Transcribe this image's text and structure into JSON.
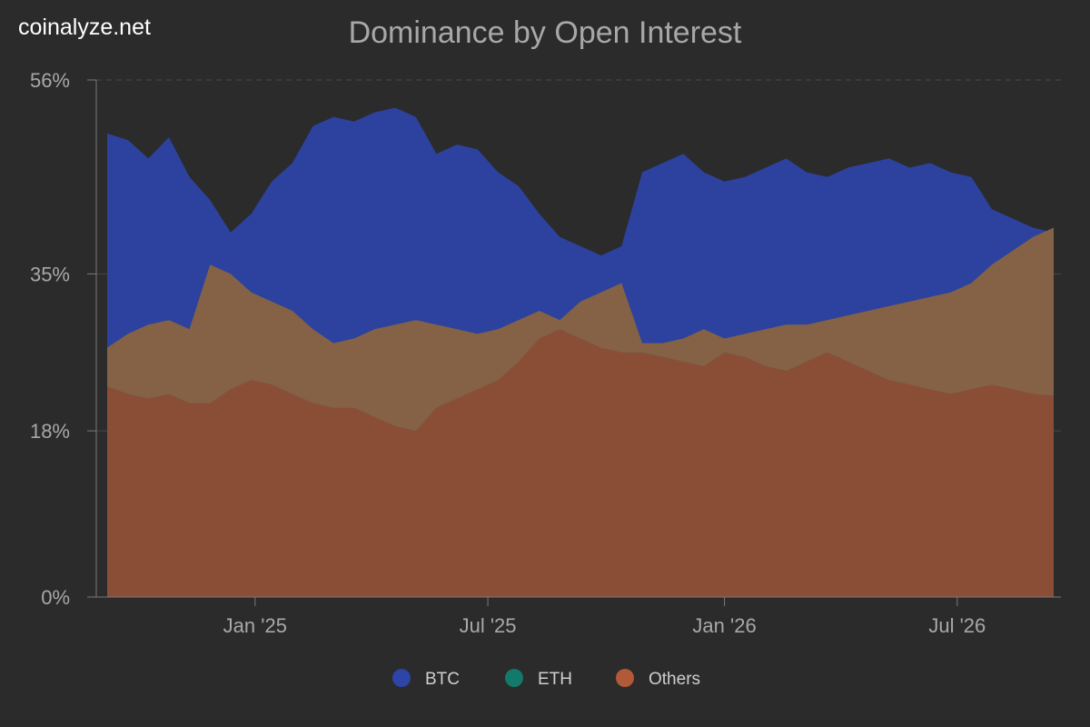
{
  "site_label": "coinalyze.net",
  "chart_data": {
    "type": "area",
    "title": "Dominance by Open Interest",
    "xlabel": "",
    "ylabel": "",
    "ylim": [
      0,
      56
    ],
    "y_ticks": [
      "0%",
      "18%",
      "35%",
      "56%"
    ],
    "y_tick_values": [
      0,
      18,
      35,
      56
    ],
    "x_ticks": [
      "Jan '25",
      "Jul '25",
      "Jan '26",
      "Jul '26"
    ],
    "x_tick_dates": [
      "2025-01-01",
      "2025-07-01",
      "2026-01-01",
      "2026-07-01"
    ],
    "grid": true,
    "legend_position": "bottom-center",
    "x": [
      "2024-09-08",
      "2024-09-24",
      "2024-10-10",
      "2024-10-26",
      "2024-11-11",
      "2024-11-27",
      "2024-12-13",
      "2024-12-29",
      "2025-01-14",
      "2025-01-30",
      "2025-02-15",
      "2025-03-03",
      "2025-03-19",
      "2025-04-04",
      "2025-04-20",
      "2025-05-06",
      "2025-05-22",
      "2025-06-07",
      "2025-06-23",
      "2025-07-09",
      "2025-07-25",
      "2025-08-10",
      "2025-08-26",
      "2025-09-11",
      "2025-09-27",
      "2025-10-13",
      "2025-10-29",
      "2025-11-14",
      "2025-11-30",
      "2025-12-16",
      "2026-01-01",
      "2026-01-17",
      "2026-02-02",
      "2026-02-18",
      "2026-03-06",
      "2026-03-22",
      "2026-04-07",
      "2026-04-23",
      "2026-05-09",
      "2026-05-25",
      "2026-06-10",
      "2026-06-26",
      "2026-07-12",
      "2026-07-28",
      "2026-08-13",
      "2026-08-29",
      "2026-09-14"
    ],
    "series": [
      {
        "name": "BTC",
        "color": "#2d44a8",
        "values": [
          50.2,
          49.5,
          47.5,
          49.8,
          45.5,
          43.0,
          39.5,
          41.5,
          45.0,
          47.0,
          51.0,
          52.0,
          51.5,
          52.5,
          53.0,
          52.0,
          48.0,
          49.0,
          48.5,
          46.0,
          44.5,
          41.5,
          39.0,
          38.0,
          37.0,
          38.0,
          46.0,
          47.0,
          48.0,
          46.0,
          45.0,
          45.5,
          46.5,
          47.5,
          46.0,
          45.5,
          46.5,
          47.0,
          47.5,
          46.5,
          47.0,
          46.0,
          45.5,
          42.0,
          41.0,
          40.0,
          39.5
        ]
      },
      {
        "name": "ETH",
        "color": "#127a6a",
        "values": [
          27.0,
          28.5,
          29.5,
          30.0,
          29.0,
          36.0,
          35.0,
          33.0,
          32.0,
          31.0,
          29.0,
          27.5,
          28.0,
          29.0,
          29.5,
          30.0,
          29.5,
          29.0,
          28.5,
          29.0,
          30.0,
          31.0,
          30.0,
          32.0,
          33.0,
          34.0,
          27.5,
          27.5,
          28.0,
          29.0,
          28.0,
          28.5,
          29.0,
          29.5,
          29.5,
          30.0,
          30.5,
          31.0,
          31.5,
          32.0,
          32.5,
          33.0,
          34.0,
          36.0,
          37.5,
          39.0,
          40.0
        ]
      },
      {
        "name": "Others",
        "color": "#8a4e36",
        "values": [
          22.8,
          22.0,
          21.5,
          22.0,
          21.0,
          21.0,
          22.5,
          23.5,
          23.0,
          22.0,
          21.0,
          20.5,
          20.5,
          19.5,
          18.5,
          18.0,
          20.5,
          21.5,
          22.5,
          23.5,
          25.5,
          28.0,
          29.0,
          28.0,
          27.0,
          26.5,
          26.5,
          26.0,
          25.5,
          25.0,
          26.5,
          26.0,
          25.0,
          24.5,
          25.5,
          26.5,
          25.5,
          24.5,
          23.5,
          23.0,
          22.5,
          22.0,
          22.5,
          23.0,
          22.5,
          22.0,
          21.8
        ]
      }
    ]
  },
  "legend": [
    {
      "label": "BTC",
      "color": "#2d44a8"
    },
    {
      "label": "ETH",
      "color": "#127a6a"
    },
    {
      "label": "Others",
      "color": "#b25a38"
    }
  ]
}
